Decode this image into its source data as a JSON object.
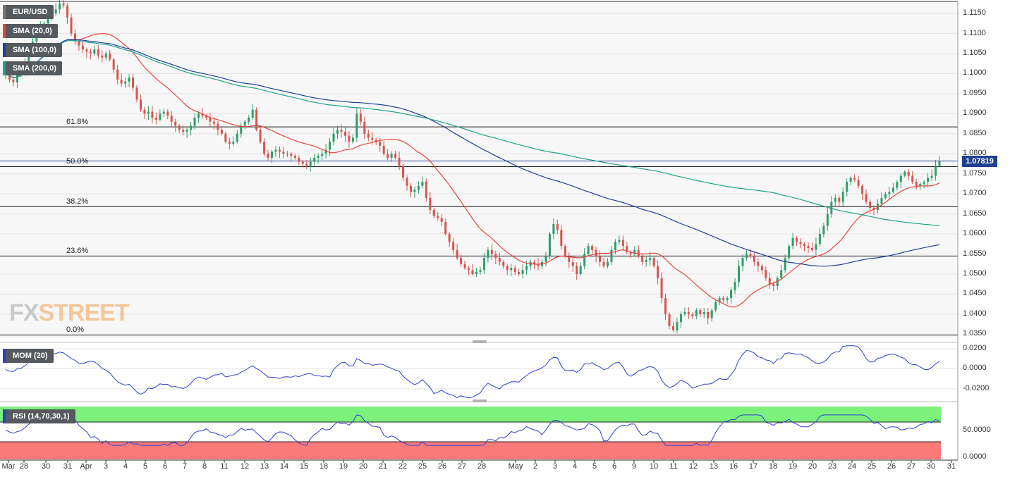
{
  "symbol": "EUR/USD",
  "indicators": {
    "sma20": "SMA (20,0)",
    "sma100": "SMA (100,0)",
    "sma200": "SMA (200,0)",
    "mom": "MOM (20)",
    "rsi": "RSI (14,70,30,1)"
  },
  "colors": {
    "sma20": "#e8463a",
    "sma100": "#1f3f9f",
    "sma200": "#1ea38a",
    "bull": "#2e9e6b",
    "bear": "#d9534f",
    "mom": "#2a3fd6",
    "rsi": "#2a3fd6",
    "rsi_overbought": "#7cf27c",
    "rsi_oversold": "#fa7a7a"
  },
  "watermark": {
    "part1": "FX",
    "part2": "STREET"
  },
  "last_price": "1.07819",
  "price_axis": [
    "1.1150",
    "1.1100",
    "1.1050",
    "1.1000",
    "1.0950",
    "1.0900",
    "1.0850",
    "1.0800",
    "1.0750",
    "1.0700",
    "1.0650",
    "1.0600",
    "1.0550",
    "1.0500",
    "1.0450",
    "1.0400",
    "1.0350"
  ],
  "mom_axis": [
    "0.0200",
    "0.0000",
    "-0.0200"
  ],
  "rsi_axis": [
    "50.0000",
    "0.0000"
  ],
  "fib_levels": [
    {
      "label": "61.8%",
      "price": 1.0867
    },
    {
      "label": "50.0%",
      "price": 1.0768
    },
    {
      "label": "38.2%",
      "price": 1.0668
    },
    {
      "label": "23.6%",
      "price": 1.0545
    },
    {
      "label": "0.0%",
      "price": 1.0348
    }
  ],
  "x_axis": [
    "Mar",
    "28",
    "30",
    "31",
    "Apr",
    "3",
    "4",
    "5",
    "6",
    "7",
    "8",
    "11",
    "12",
    "13",
    "14",
    "15",
    "18",
    "19",
    "20",
    "21",
    "22",
    "25",
    "26",
    "27",
    "28",
    "May",
    "2",
    "3",
    "4",
    "5",
    "6",
    "9",
    "10",
    "11",
    "12",
    "13",
    "16",
    "17",
    "18",
    "19",
    "20",
    "23",
    "24",
    "25",
    "26",
    "27",
    "30",
    "31"
  ],
  "chart_data": {
    "type": "candlestick",
    "symbol": "EUR/USD",
    "ylim": [
      1.034,
      1.118
    ],
    "last": 1.07819,
    "close": [
      1.1005,
      1.0985,
      1.0978,
      1.1,
      1.1008,
      1.103,
      1.106,
      1.108,
      1.11,
      1.112,
      1.1125,
      1.114,
      1.115,
      1.116,
      1.1175,
      1.117,
      1.114,
      1.11,
      1.108,
      1.107,
      1.106,
      1.1055,
      1.105,
      1.106,
      1.1045,
      1.104,
      1.105,
      1.1035,
      1.101,
      1.0985,
      1.0975,
      1.098,
      1.099,
      1.0965,
      1.0935,
      1.091,
      1.09,
      1.0905,
      1.089,
      1.0885,
      1.09,
      1.0905,
      1.0895,
      1.088,
      1.087,
      1.086,
      1.0855,
      1.086,
      1.087,
      1.089,
      1.09,
      1.0895,
      1.089,
      1.088,
      1.0875,
      1.086,
      1.085,
      1.083,
      1.0825,
      1.083,
      1.085,
      1.087,
      1.088,
      1.089,
      1.091,
      1.086,
      1.083,
      1.08,
      1.079,
      1.0805,
      1.081,
      1.0805,
      1.08,
      1.08,
      1.0795,
      1.079,
      1.078,
      1.0775,
      1.077,
      1.078,
      1.079,
      1.0795,
      1.08,
      1.081,
      1.083,
      1.085,
      1.086,
      1.0855,
      1.0845,
      1.083,
      1.084,
      1.09,
      1.088,
      1.085,
      1.084,
      1.0835,
      1.083,
      1.082,
      1.08,
      1.079,
      1.08,
      1.079,
      1.077,
      1.074,
      1.072,
      1.0705,
      1.071,
      1.072,
      1.073,
      1.069,
      1.066,
      1.0645,
      1.064,
      1.063,
      1.06,
      1.058,
      1.056,
      1.054,
      1.0525,
      1.0515,
      1.051,
      1.05,
      1.0505,
      1.051,
      1.054,
      1.056,
      1.055,
      1.054,
      1.053,
      1.052,
      1.051,
      1.0515,
      1.0505,
      1.05,
      1.051,
      1.052,
      1.053,
      1.0525,
      1.052,
      1.053,
      1.0545,
      1.06,
      1.0625,
      1.061,
      1.057,
      1.0545,
      1.053,
      1.052,
      1.05,
      1.052,
      1.055,
      1.057,
      1.056,
      1.0545,
      1.053,
      1.052,
      1.053,
      1.056,
      1.058,
      1.0585,
      1.057,
      1.0555,
      1.055,
      1.056,
      1.0545,
      1.053,
      1.0535,
      1.054,
      1.052,
      1.049,
      1.044,
      1.04,
      1.037,
      1.036,
      1.038,
      1.04,
      1.0405,
      1.04,
      1.0395,
      1.041,
      1.04,
      1.0405,
      1.039,
      1.041,
      1.043,
      1.044,
      1.0435,
      1.044,
      1.046,
      1.048,
      1.052,
      1.054,
      1.055,
      1.0545,
      1.053,
      1.052,
      1.051,
      1.049,
      1.0475,
      1.047,
      1.049,
      1.051,
      1.054,
      1.057,
      1.059,
      1.058,
      1.0575,
      1.057,
      1.0565,
      1.056,
      1.0575,
      1.06,
      1.062,
      1.065,
      1.068,
      1.069,
      1.068,
      1.0705,
      1.073,
      1.074,
      1.0735,
      1.072,
      1.07,
      1.068,
      1.0665,
      1.066,
      1.0675,
      1.069,
      1.07,
      1.0705,
      1.0715,
      1.073,
      1.0745,
      1.0755,
      1.0745,
      1.073,
      1.072,
      1.0725,
      1.073,
      1.074,
      1.0745,
      1.077,
      1.0782
    ],
    "sma20_end": 1.0727,
    "sma100_end": 1.0573,
    "sma200_end": 1.0621
  }
}
